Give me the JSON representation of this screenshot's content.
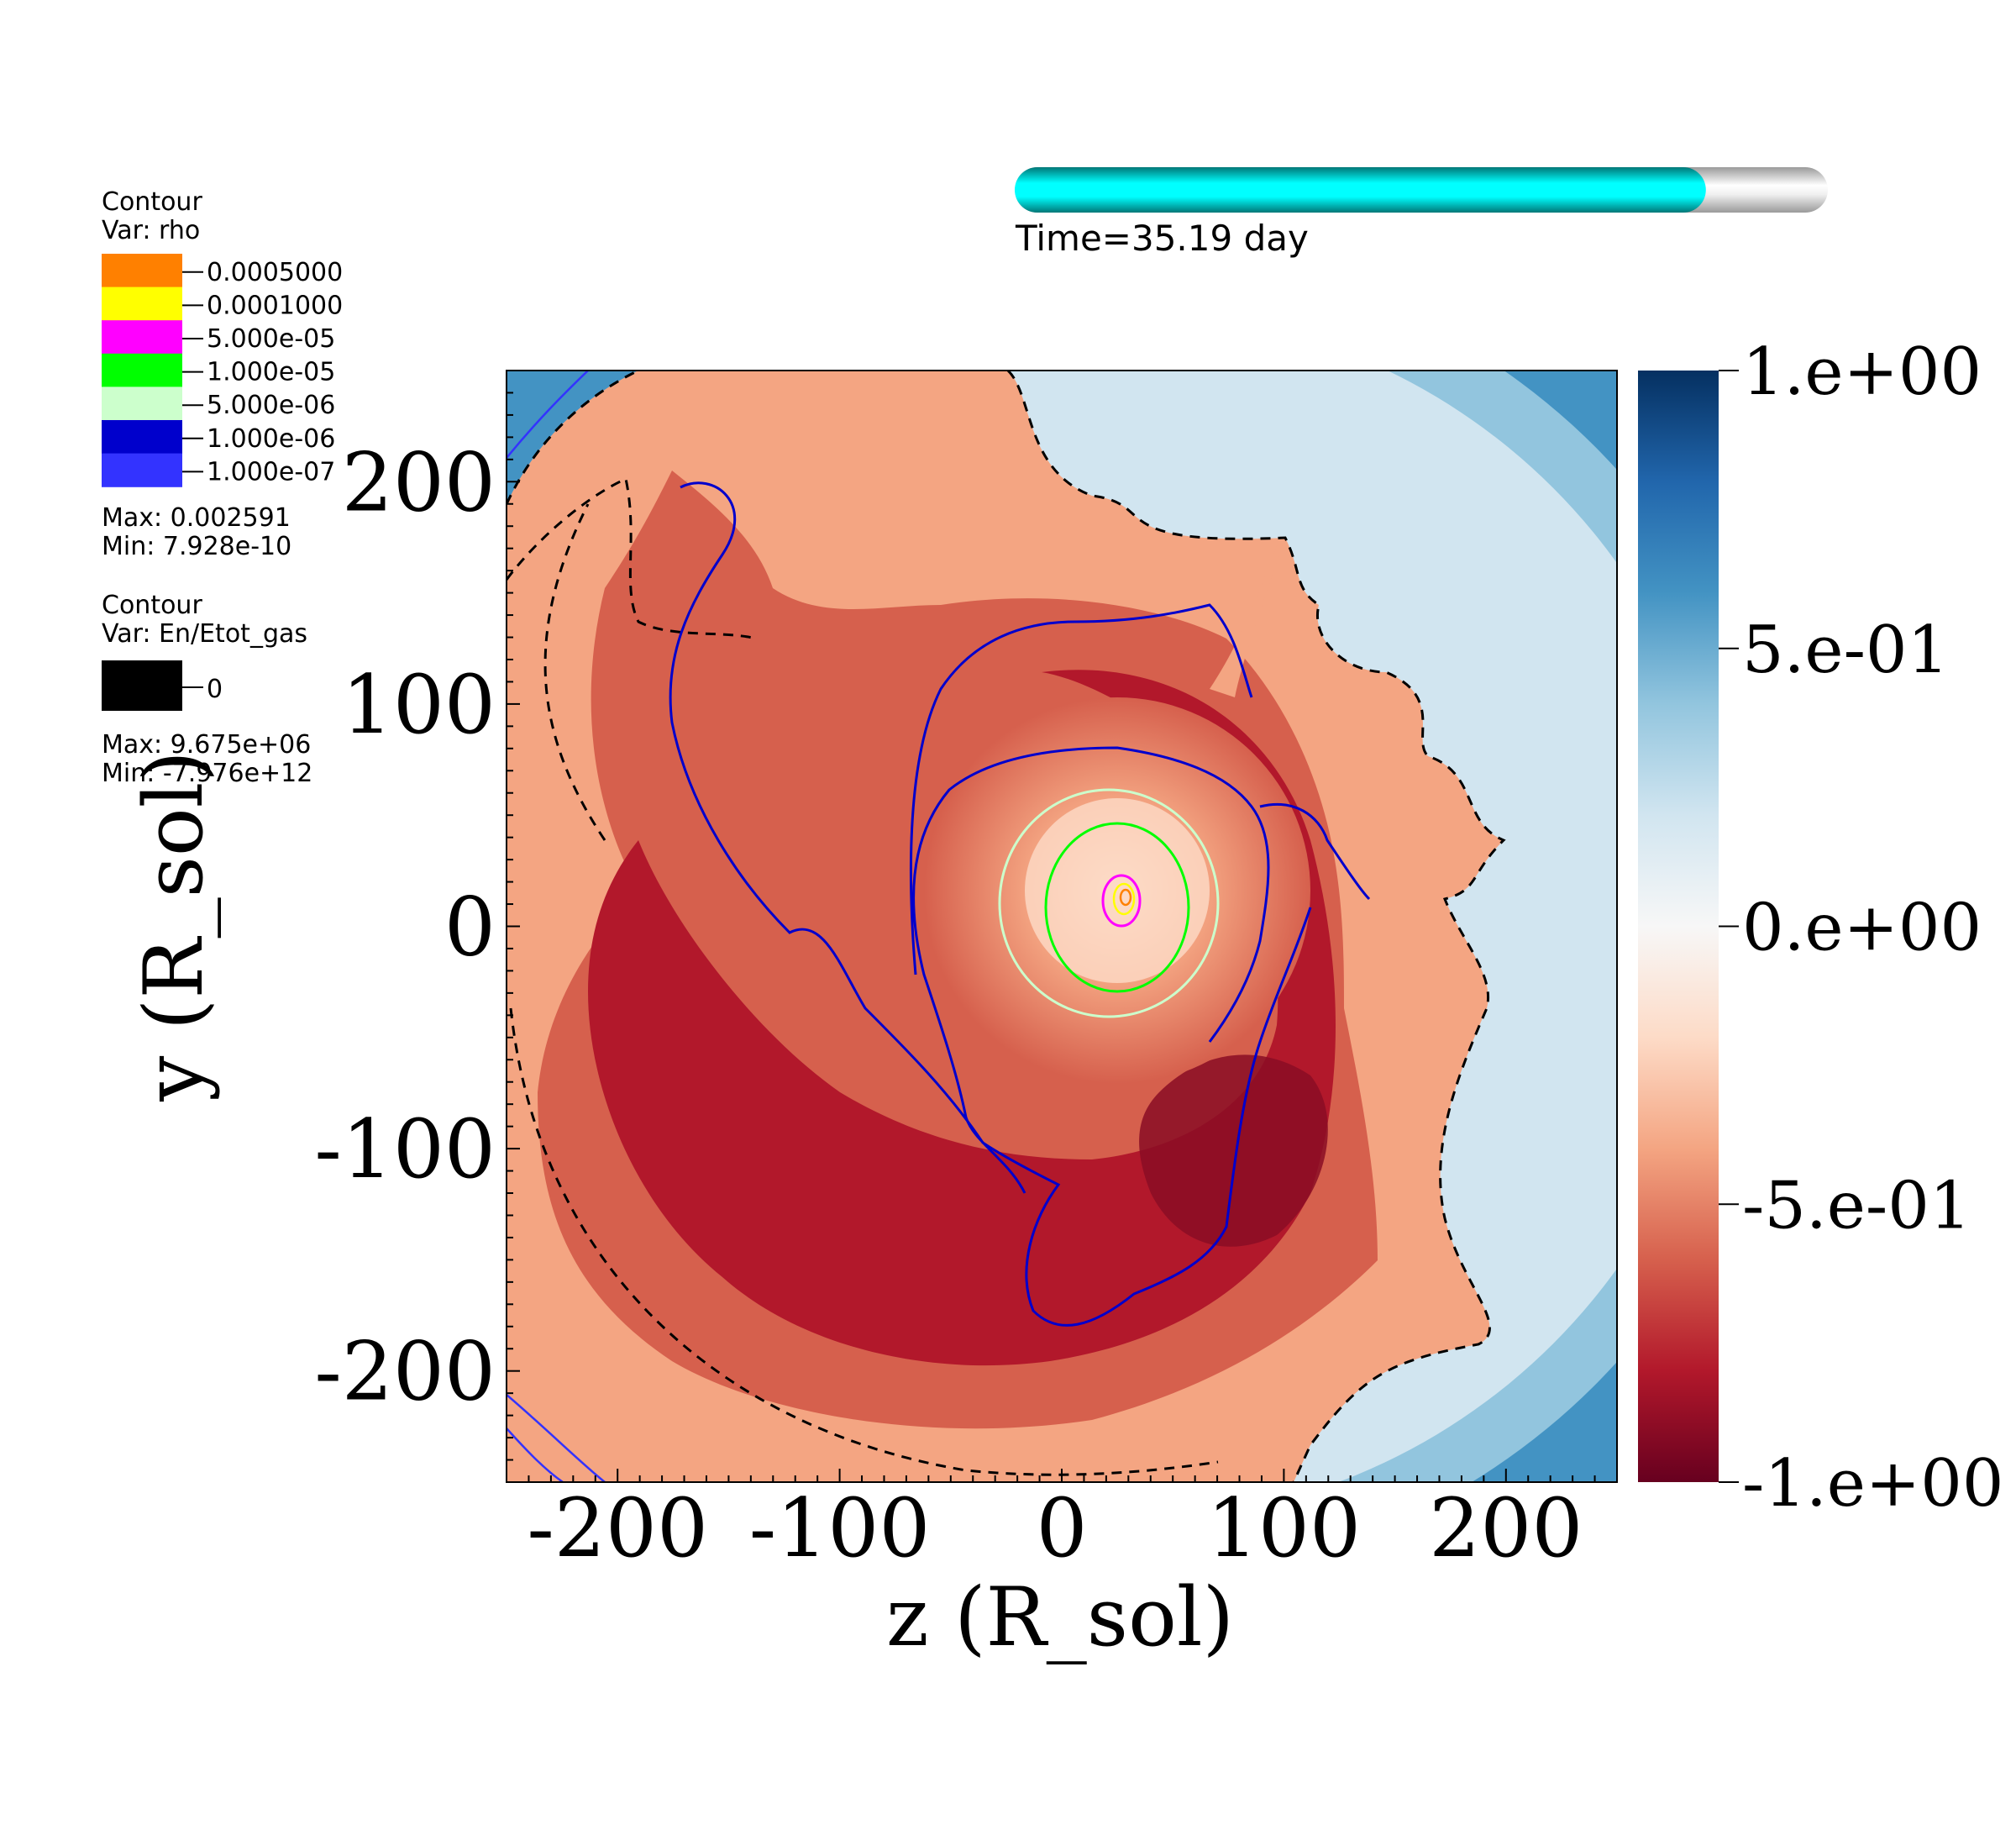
{
  "time_label": "Time=35.19 day",
  "time_progress": 0.85,
  "rho_legend": {
    "title": "Contour",
    "var": "Var: rho",
    "levels": [
      {
        "label": "0.0005000",
        "color": "#ff8000"
      },
      {
        "label": "0.0001000",
        "color": "#ffff00"
      },
      {
        "label": "5.000e-05",
        "color": "#ff00ff"
      },
      {
        "label": "1.000e-05",
        "color": "#00ff00"
      },
      {
        "label": "5.000e-06",
        "color": "#ccffcc"
      },
      {
        "label": "1.000e-06",
        "color": "#0000cc"
      },
      {
        "label": "1.000e-07",
        "color": "#3333ff"
      }
    ],
    "max": "Max:  0.002591",
    "min": "Min:  7.928e-10"
  },
  "energy_legend": {
    "title": "Contour",
    "var": "Var: En/Etot_gas",
    "levels": [
      {
        "label": "0",
        "color": "#000000"
      }
    ],
    "max": "Max:  9.675e+06",
    "min": "Min: -7.976e+12"
  },
  "chart_data": {
    "type": "heatmap",
    "xlabel": "z (R_sol)",
    "ylabel": "y (R_sol)",
    "xlim": [
      -250,
      250
    ],
    "ylim": [
      -250,
      250
    ],
    "xticks": [
      -200,
      -100,
      0,
      100,
      200
    ],
    "yticks": [
      200,
      100,
      0,
      -100,
      -200
    ],
    "colorbar": {
      "range": [
        -1,
        1
      ],
      "ticks": [
        {
          "value": 1.0,
          "label": "1.e+00"
        },
        {
          "value": 0.5,
          "label": "5.e-01"
        },
        {
          "value": 0.0,
          "label": "0.e+00"
        },
        {
          "value": -0.5,
          "label": "-5.e-01"
        },
        {
          "value": -1.0,
          "label": "-1.e+00"
        }
      ],
      "colormap": [
        "#67001f",
        "#b2182b",
        "#d6604d",
        "#f4a582",
        "#fddbc7",
        "#f7f7f7",
        "#d1e5f0",
        "#92c5de",
        "#4393c3",
        "#2166ac",
        "#053061"
      ]
    },
    "center": [
      30,
      12
    ]
  }
}
